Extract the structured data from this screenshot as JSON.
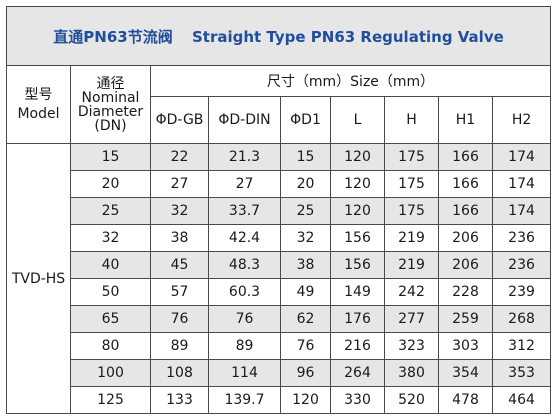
{
  "title": {
    "cn": "直通PN63节流阀",
    "en": "Straight Type PN63 Regulating Valve"
  },
  "header": {
    "model_cn": "型号",
    "model_en": "Model",
    "dn_cn": "通径",
    "dn_en_1": "Nominal",
    "dn_en_2": "Diameter",
    "dn_en_3": "(DN)",
    "size_label": "尺寸（mm）Size（mm）",
    "columns": [
      "ΦD-GB",
      "ΦD-DIN",
      "ΦD1",
      "L",
      "H",
      "H1",
      "H2"
    ]
  },
  "model": "TVD-HS",
  "rows": [
    [
      "15",
      "22",
      "21.3",
      "15",
      "120",
      "175",
      "166",
      "174"
    ],
    [
      "20",
      "27",
      "27",
      "20",
      "120",
      "175",
      "166",
      "174"
    ],
    [
      "25",
      "32",
      "33.7",
      "25",
      "120",
      "175",
      "166",
      "174"
    ],
    [
      "32",
      "38",
      "42.4",
      "32",
      "156",
      "219",
      "206",
      "236"
    ],
    [
      "40",
      "45",
      "48.3",
      "38",
      "156",
      "219",
      "206",
      "236"
    ],
    [
      "50",
      "57",
      "60.3",
      "49",
      "149",
      "242",
      "228",
      "239"
    ],
    [
      "65",
      "76",
      "76",
      "62",
      "176",
      "277",
      "259",
      "268"
    ],
    [
      "80",
      "89",
      "89",
      "76",
      "216",
      "323",
      "303",
      "312"
    ],
    [
      "100",
      "108",
      "114",
      "96",
      "264",
      "380",
      "354",
      "353"
    ],
    [
      "125",
      "133",
      "139.7",
      "120",
      "330",
      "520",
      "478",
      "464"
    ]
  ]
}
